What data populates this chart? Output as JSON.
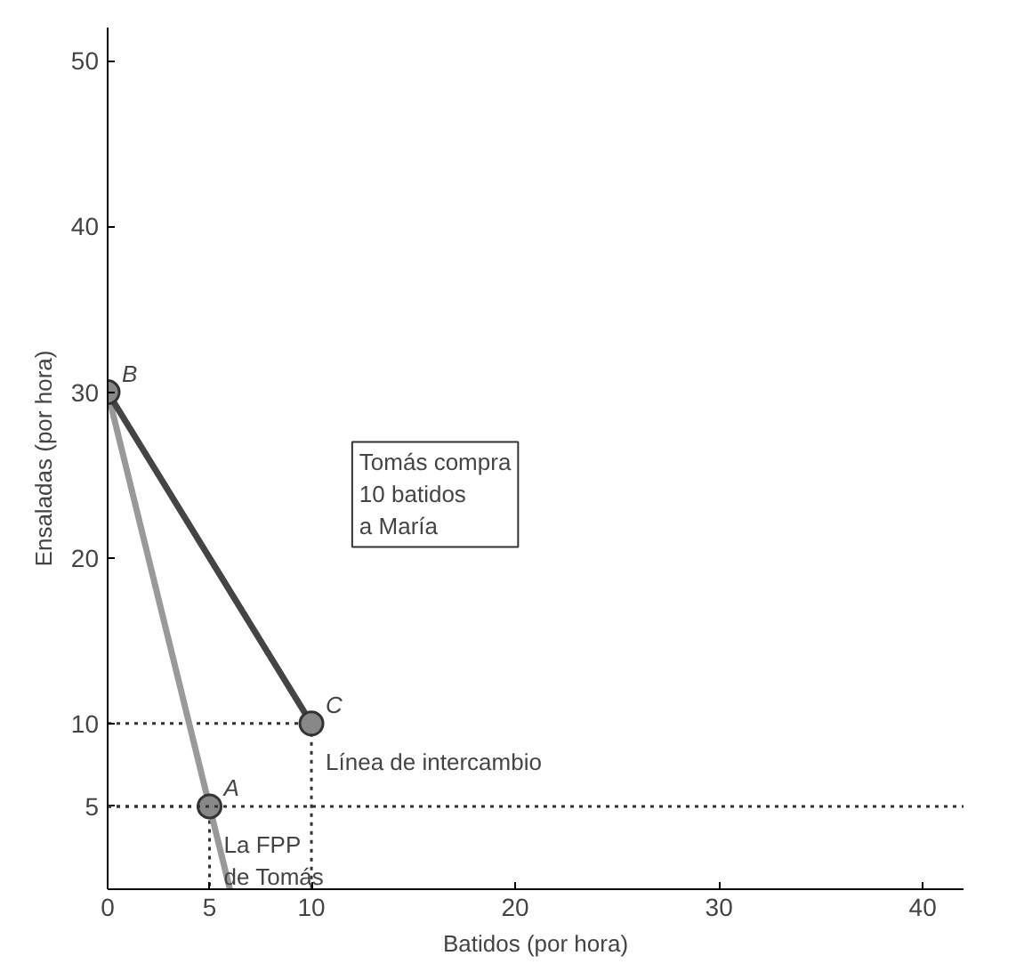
{
  "chart_data": {
    "type": "line",
    "xlabel": "Batidos (por hora)",
    "ylabel": "Ensaladas (por hora)",
    "xlim": [
      0,
      42
    ],
    "ylim": [
      0,
      52
    ],
    "xticks": [
      0,
      5,
      10,
      20,
      30,
      40
    ],
    "yticks": [
      5,
      10,
      20,
      30,
      40,
      50
    ],
    "grid": false,
    "series": [
      {
        "x": [
          0,
          5,
          5
        ],
        "values": [
          5,
          5,
          0
        ],
        "color": "#333333",
        "line_style": "dotted"
      },
      {
        "x": [
          0,
          10,
          10
        ],
        "values": [
          10,
          10,
          0
        ],
        "color": "#333333",
        "line_style": "dotted"
      },
      {
        "x": [
          0,
          6
        ],
        "values": [
          30,
          0
        ],
        "color": "#999999",
        "line_style": "solid"
      },
      {
        "x": [
          0,
          10
        ],
        "values": [
          30,
          10
        ],
        "color": "#444444",
        "line_style": "solid"
      },
      {
        "type": "scatter",
        "x": [
          0,
          5,
          10
        ],
        "values": [
          30,
          5,
          10
        ],
        "color": "#888888",
        "marker": "circle"
      }
    ],
    "ref_lines": [
      {
        "axis": "y",
        "value": 5,
        "label": null,
        "color": "#333333",
        "line_style": "dotted"
      }
    ],
    "annotations": [
      {
        "text": "B",
        "x": 0,
        "y": 30
      },
      {
        "text": "A",
        "x": 5,
        "y": 5
      },
      {
        "text": "C",
        "x": 10,
        "y": 10
      },
      {
        "text": "Línea de intercambio",
        "x": 10,
        "y": 10
      },
      {
        "text": "La FPP\nde Tomás",
        "x": 5,
        "y": 5
      },
      "Tomás compra\n10 batidos\na María"
    ]
  }
}
